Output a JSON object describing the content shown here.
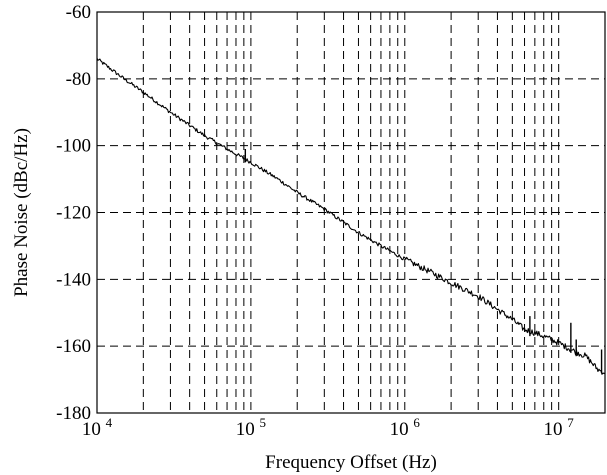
{
  "chart_data": {
    "type": "line",
    "title": "",
    "xlabel": "Frequency Offset (Hz)",
    "ylabel": "Phase Noise (dBc/Hz)",
    "x_scale": "log",
    "xlim": [
      10000,
      20000000
    ],
    "ylim": [
      -180,
      -60
    ],
    "grid": true,
    "x_ticks": [
      {
        "base": "10",
        "exp": "4",
        "value": 10000
      },
      {
        "base": "10",
        "exp": "5",
        "value": 100000
      },
      {
        "base": "10",
        "exp": "6",
        "value": 1000000
      },
      {
        "base": "10",
        "exp": "7",
        "value": 10000000
      }
    ],
    "y_ticks": [
      {
        "label": "-60",
        "value": -60
      },
      {
        "label": "-80",
        "value": -80
      },
      {
        "label": "-100",
        "value": -100
      },
      {
        "label": "-120",
        "value": -120
      },
      {
        "label": "-140",
        "value": -140
      },
      {
        "label": "-160",
        "value": -160
      },
      {
        "label": "-180",
        "value": -180
      }
    ],
    "series": [
      {
        "color": "#000000",
        "points": [
          [
            10000,
            -74
          ],
          [
            15000,
            -80
          ],
          [
            20000,
            -84
          ],
          [
            30000,
            -90
          ],
          [
            50000,
            -97
          ],
          [
            70000,
            -101
          ],
          [
            100000,
            -105
          ],
          [
            150000,
            -110
          ],
          [
            200000,
            -114
          ],
          [
            300000,
            -119
          ],
          [
            500000,
            -126
          ],
          [
            700000,
            -130
          ],
          [
            1000000,
            -134
          ],
          [
            1500000,
            -138
          ],
          [
            2000000,
            -141
          ],
          [
            3000000,
            -145
          ],
          [
            4000000,
            -149
          ],
          [
            5000000,
            -152
          ],
          [
            6000000,
            -155
          ],
          [
            7000000,
            -156
          ],
          [
            8000000,
            -157
          ],
          [
            10000000,
            -159
          ],
          [
            12000000,
            -161
          ],
          [
            15000000,
            -163
          ],
          [
            18000000,
            -167
          ],
          [
            20000000,
            -168
          ]
        ],
        "spurs": [
          [
            92000,
            -105,
            -101
          ],
          [
            6500000,
            -157,
            -151
          ],
          [
            12000000,
            -162,
            -153
          ],
          [
            13000000,
            -163,
            -158
          ],
          [
            19000000,
            -168,
            -161
          ]
        ]
      }
    ]
  }
}
